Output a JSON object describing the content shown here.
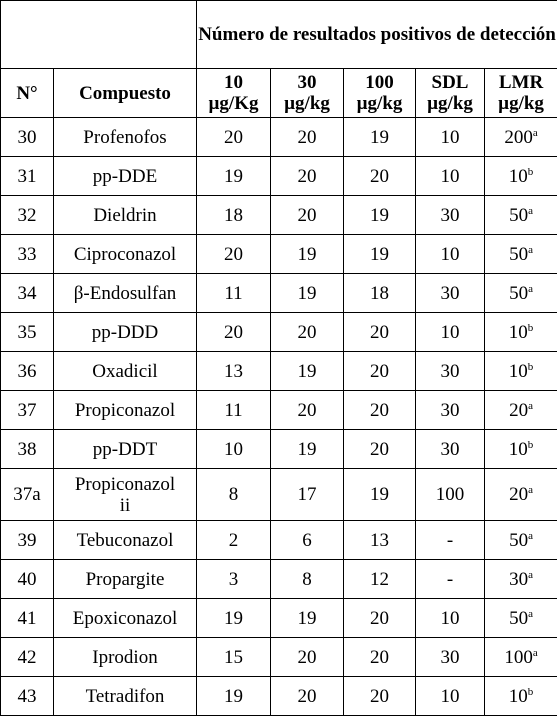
{
  "header": {
    "group_title": "Número de resultados positivos de detección",
    "num": "N°",
    "compound": "Compuesto",
    "cols": [
      {
        "top": "10",
        "unit": "µg/Kg"
      },
      {
        "top": "30",
        "unit": "µg/kg"
      },
      {
        "top": "100",
        "unit": "µg/kg"
      },
      {
        "top": "SDL",
        "unit": "µg/kg"
      },
      {
        "top": "LMR",
        "unit": "µg/kg"
      }
    ]
  },
  "rows": [
    {
      "n": "30",
      "name": "Profenofos",
      "c10": "20",
      "c30": "20",
      "c100": "19",
      "sdl": "10",
      "lmr": "200",
      "lmr_note": "a"
    },
    {
      "n": "31",
      "name": "pp-DDE",
      "c10": "19",
      "c30": "20",
      "c100": "20",
      "sdl": "10",
      "lmr": "10",
      "lmr_note": "b"
    },
    {
      "n": "32",
      "name": "Dieldrin",
      "c10": "18",
      "c30": "20",
      "c100": "19",
      "sdl": "30",
      "lmr": "50",
      "lmr_note": "a"
    },
    {
      "n": "33",
      "name": "Ciproconazol",
      "c10": "20",
      "c30": "19",
      "c100": "19",
      "sdl": "10",
      "lmr": "50",
      "lmr_note": "a"
    },
    {
      "n": "34",
      "name": "β-Endosulfan",
      "c10": "11",
      "c30": "19",
      "c100": "18",
      "sdl": "30",
      "lmr": "50",
      "lmr_note": "a"
    },
    {
      "n": "35",
      "name": "pp-DDD",
      "c10": "20",
      "c30": "20",
      "c100": "20",
      "sdl": "10",
      "lmr": "10",
      "lmr_note": "b"
    },
    {
      "n": "36",
      "name": "Oxadicil",
      "c10": "13",
      "c30": "19",
      "c100": "20",
      "sdl": "30",
      "lmr": "10",
      "lmr_note": "b"
    },
    {
      "n": "37",
      "name": "Propiconazol",
      "c10": "11",
      "c30": "20",
      "c100": "20",
      "sdl": "30",
      "lmr": "20",
      "lmr_note": "a"
    },
    {
      "n": "38",
      "name": "pp-DDT",
      "c10": "10",
      "c30": "19",
      "c100": "20",
      "sdl": "30",
      "lmr": "10",
      "lmr_note": "b"
    },
    {
      "n": "37a",
      "name": "Propiconazol",
      "name2": "ii",
      "c10": "8",
      "c30": "17",
      "c100": "19",
      "sdl": "100",
      "lmr": "20",
      "lmr_note": "a"
    },
    {
      "n": "39",
      "name": "Tebuconazol",
      "c10": "2",
      "c30": "6",
      "c100": "13",
      "sdl": "-",
      "lmr": "50",
      "lmr_note": "a"
    },
    {
      "n": "40",
      "name": "Propargite",
      "c10": "3",
      "c30": "8",
      "c100": "12",
      "sdl": "-",
      "lmr": "30",
      "lmr_note": "a"
    },
    {
      "n": "41",
      "name": "Epoxiconazol",
      "c10": "19",
      "c30": "19",
      "c100": "20",
      "sdl": "10",
      "lmr": "50",
      "lmr_note": "a"
    },
    {
      "n": "42",
      "name": "Iprodion",
      "c10": "15",
      "c30": "20",
      "c100": "20",
      "sdl": "30",
      "lmr": "100",
      "lmr_note": "a"
    },
    {
      "n": "43",
      "name": "Tetradifon",
      "c10": "19",
      "c30": "20",
      "c100": "20",
      "sdl": "10",
      "lmr": "10",
      "lmr_note": "b"
    }
  ]
}
